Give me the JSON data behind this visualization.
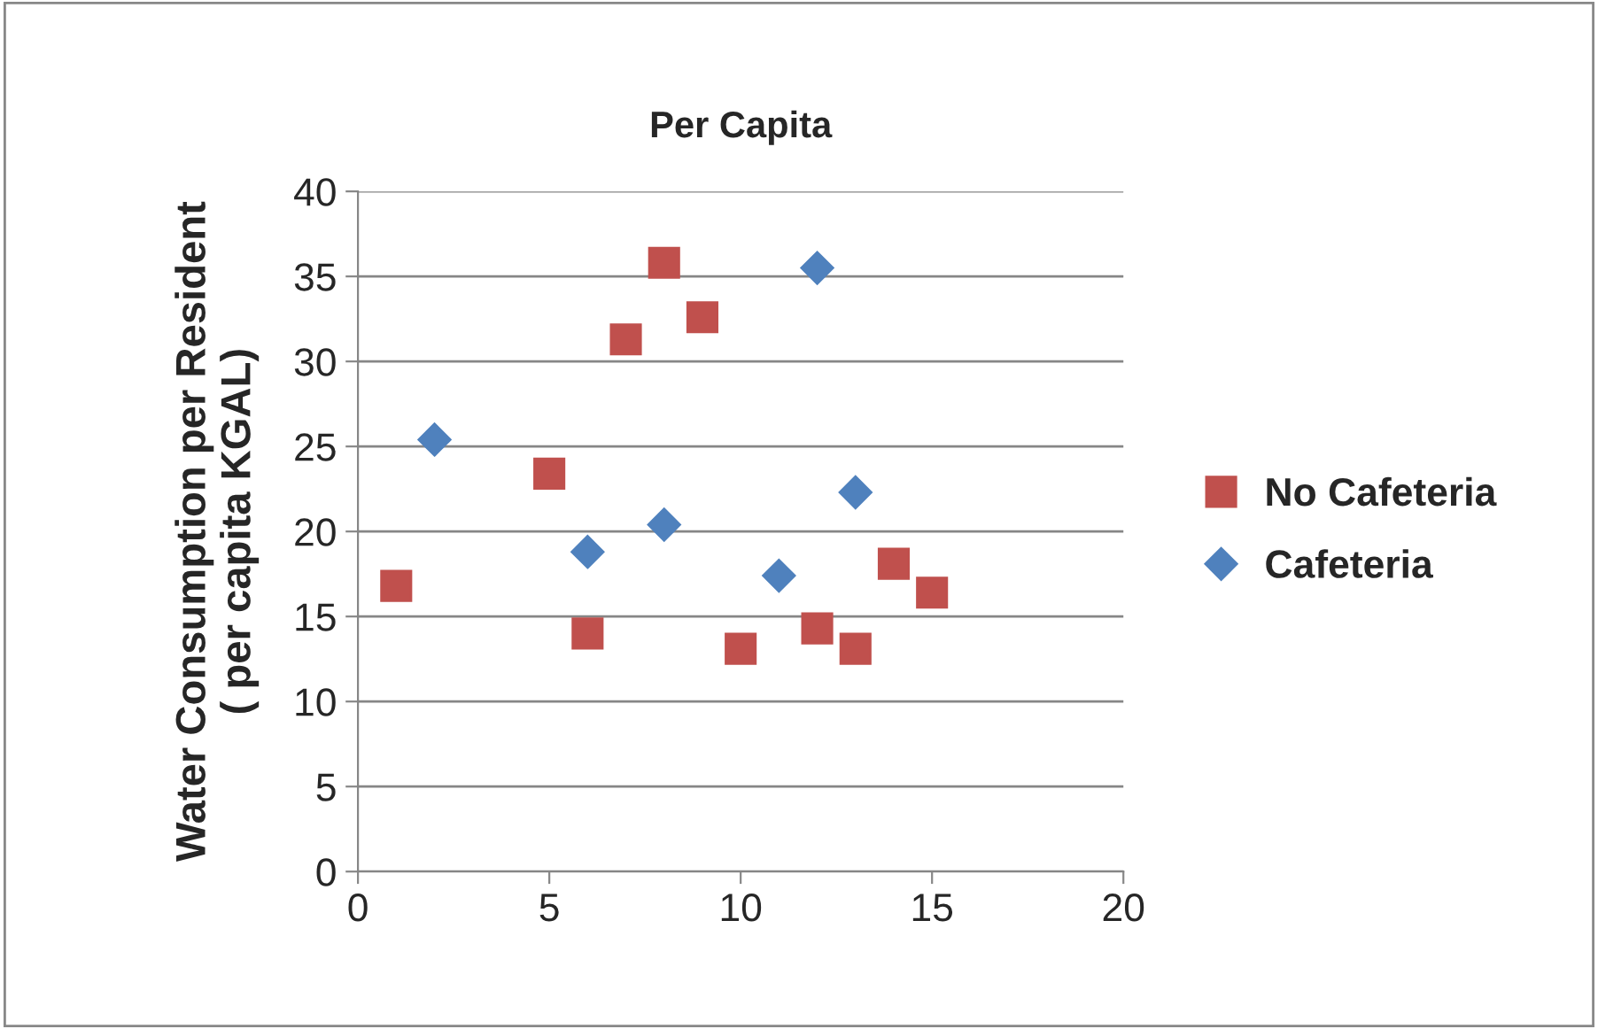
{
  "chart_data": {
    "type": "scatter",
    "title": "Per Capita",
    "ylabel": "Water Consumption per Resident\n( per capita KGAL)",
    "xlim": [
      0,
      20
    ],
    "xticks": [
      0,
      5,
      10,
      15,
      20
    ],
    "ylim": [
      0,
      40
    ],
    "yticks": [
      0,
      5,
      10,
      15,
      20,
      25,
      30,
      35,
      40
    ],
    "grid": "y",
    "legend": "right",
    "series": [
      {
        "name": "No Cafeteria",
        "color": "#c0504d",
        "marker": "square",
        "x": [
          1,
          5,
          6,
          7,
          8,
          9,
          10,
          12,
          13,
          14,
          15
        ],
        "values": [
          16.8,
          23.4,
          14.0,
          31.3,
          35.8,
          32.6,
          13.1,
          14.3,
          13.1,
          18.1,
          16.4
        ]
      },
      {
        "name": "Cafeteria",
        "color": "#4f81bd",
        "marker": "diamond",
        "x": [
          2,
          6,
          8,
          11,
          12,
          13
        ],
        "values": [
          25.4,
          18.8,
          20.4,
          17.4,
          35.5,
          22.3
        ]
      }
    ]
  }
}
